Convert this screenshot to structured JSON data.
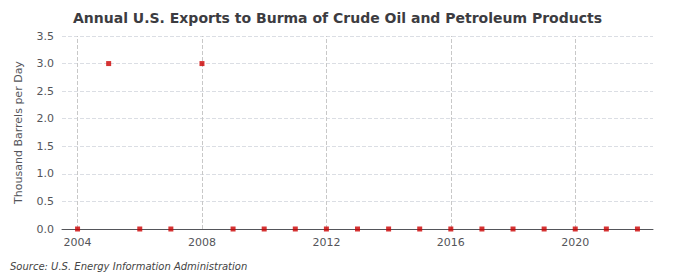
{
  "chart_data": {
    "type": "scatter",
    "title": "Annual U.S. Exports to Burma of Crude Oil and Petroleum Products",
    "ylabel": "Thousand Barrels per Day",
    "annotations": [
      "Source: U.S. Energy Information Administration"
    ],
    "x": [
      2004,
      2005,
      2006,
      2007,
      2008,
      2009,
      2010,
      2011,
      2012,
      2013,
      2014,
      2015,
      2016,
      2017,
      2018,
      2019,
      2020,
      2021,
      2022
    ],
    "values": [
      0.0,
      3.0,
      0.0,
      0.0,
      3.0,
      0.0,
      0.0,
      0.0,
      0.0,
      0.0,
      0.0,
      0.0,
      0.0,
      0.0,
      0.0,
      0.0,
      0.0,
      0.0,
      0.0
    ],
    "color": "#cc0000",
    "marker": "square",
    "xlim": [
      2003.5,
      2022.5
    ],
    "xticks": [
      2004,
      2008,
      2012,
      2016,
      2020
    ],
    "ylim": [
      0.0,
      3.5
    ],
    "yticks": [
      {
        "value": 0,
        "label": "0.0"
      },
      0.5,
      {
        "value": 1,
        "label": "1.0"
      },
      1.5,
      {
        "value": 2,
        "label": "2.0"
      },
      2.5,
      {
        "value": 3,
        "label": "3.0"
      },
      3.5
    ],
    "grid": true
  }
}
